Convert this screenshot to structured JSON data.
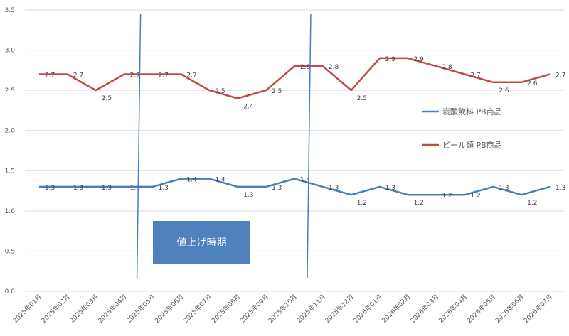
{
  "chart_data": {
    "type": "line",
    "categories": [
      "2025年01月",
      "2025年02月",
      "2025年03月",
      "2025年04月",
      "2025年05月",
      "2025年06月",
      "2025年07月",
      "2025年08月",
      "2025年09月",
      "2025年10月",
      "2025年11月",
      "2025年12月",
      "2026年01月",
      "2026年02月",
      "2026年03月",
      "2026年04月",
      "2026年05月",
      "2026年06月",
      "2026年07月"
    ],
    "series": [
      {
        "name": "炭酸飲料 PB商品",
        "color": "#4a7ebb",
        "values": [
          1.3,
          1.3,
          1.3,
          1.3,
          1.3,
          1.4,
          1.4,
          1.3,
          1.3,
          1.4,
          1.3,
          1.2,
          1.3,
          1.2,
          1.2,
          1.2,
          1.3,
          1.2,
          1.3
        ]
      },
      {
        "name": "ビール類 PB商品",
        "color": "#be4b48",
        "values": [
          2.7,
          2.7,
          2.5,
          2.7,
          2.7,
          2.7,
          2.5,
          2.4,
          2.5,
          2.8,
          2.8,
          2.5,
          2.9,
          2.9,
          2.8,
          2.7,
          2.6,
          2.6,
          2.7
        ]
      }
    ],
    "y_ticks": [
      "0.0",
      "0.5",
      "1.0",
      "1.5",
      "2.0",
      "2.5",
      "3.0",
      "3.5"
    ],
    "ylim": [
      0,
      3.5
    ],
    "grid": true,
    "legend_placement": "right",
    "vertical_markers": [
      "2025年04月",
      "2025年10月"
    ],
    "annotation": {
      "text": "値上げ時期",
      "color": "#4f81bd"
    },
    "title": "",
    "xlabel": "",
    "ylabel": ""
  }
}
